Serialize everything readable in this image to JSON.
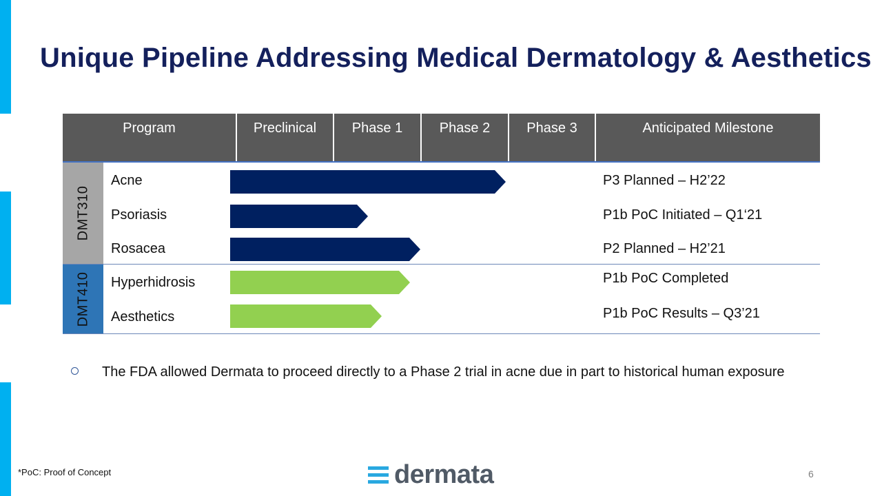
{
  "title": "Unique Pipeline Addressing Medical Dermatology & Aesthetics",
  "colors": {
    "title": "#14205c",
    "header_bg": "#595959",
    "dmt310": "#002060",
    "dmt410": "#92d050",
    "group1_bg": "#a6a6a6",
    "group2_bg": "#2e75b6",
    "accent_bar": "#00b0f0"
  },
  "table": {
    "headers": [
      "Program",
      "Preclinical",
      "Phase 1",
      "Phase 2",
      "Phase 3",
      "Anticipated Milestone"
    ],
    "groups": [
      {
        "name": "DMT310",
        "rows": [
          {
            "indication": "Acne",
            "stage": "Phase 2",
            "milestone": "P3 Planned – H2’22"
          },
          {
            "indication": "Psoriasis",
            "stage": "Phase 1",
            "milestone": "P1b PoC Initiated – Q1‘21"
          },
          {
            "indication": "Rosacea",
            "stage": "Phase 1",
            "milestone": "P2 Planned – H2’21"
          }
        ]
      },
      {
        "name": "DMT410",
        "rows": [
          {
            "indication": "Hyperhidrosis",
            "stage": "Phase 1",
            "milestone": "P1b PoC Completed"
          },
          {
            "indication": "Aesthetics",
            "stage": "Phase 1",
            "milestone": "P1b PoC Results – Q3’21"
          }
        ]
      }
    ]
  },
  "bullet": "The FDA allowed Dermata to proceed directly to a Phase 2 trial in acne due in part to historical human exposure",
  "footnote": "*PoC: Proof of Concept",
  "logo_text": "dermata",
  "page_number": "6"
}
